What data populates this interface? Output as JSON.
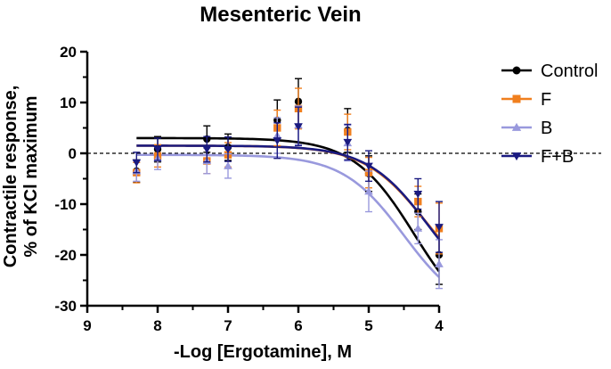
{
  "chart_data": {
    "type": "scatter",
    "title": "Mesenteric Vein",
    "xlabel": "-Log [Ergotamine], M",
    "ylabel_line1": "Contractile response,",
    "ylabel_line2": "% of KCl maximum",
    "xlim": [
      9,
      4
    ],
    "ylim": [
      -30,
      20
    ],
    "xticks": [
      9,
      8,
      7,
      6,
      5,
      4
    ],
    "yticks": [
      -30,
      -20,
      -10,
      0,
      10,
      20
    ],
    "zero_line": "dashed",
    "legend_position": "right",
    "series": [
      {
        "name": "Control",
        "color": "#000000",
        "marker": "circle",
        "x": [
          8.3,
          8,
          7.3,
          7,
          6.3,
          6,
          5.3,
          5,
          4.3,
          4
        ],
        "y": [
          -3.5,
          0.8,
          2.8,
          1.2,
          6.5,
          10.2,
          4.5,
          -4,
          -11.5,
          -20
        ],
        "err": [
          2.2,
          2.5,
          2.6,
          2.6,
          4,
          4.5,
          4.3,
          3.5,
          3.5,
          5.8
        ],
        "curve": {
          "top": 3.0,
          "bottom": -35,
          "logec50": 4.35,
          "hill": 1.0
        }
      },
      {
        "name": "F",
        "color": "#f07f1e",
        "marker": "square",
        "x": [
          8.3,
          8,
          7.3,
          7,
          6.3,
          6,
          5.3,
          5,
          4.3,
          4
        ],
        "y": [
          -3.8,
          -0.5,
          -1.5,
          -0.3,
          5,
          8.8,
          4.2,
          -3.8,
          -9.5,
          -14.8
        ],
        "err": [
          2,
          2.2,
          2.5,
          2.4,
          3.5,
          4,
          3.5,
          3,
          3,
          5
        ],
        "curve": {
          "top": 1.5,
          "bottom": -28,
          "logec50": 4.2,
          "hill": 1.0
        }
      },
      {
        "name": "B",
        "color": "#9999dd",
        "marker": "triangle-up",
        "x": [
          8.3,
          8,
          7.3,
          7,
          6.3,
          6,
          5.3,
          5,
          4.3,
          4
        ],
        "y": [
          -3.5,
          -1,
          -1.5,
          -2.5,
          3.5,
          5.5,
          2,
          -7.5,
          -14.8,
          -21.8
        ],
        "err": [
          2,
          2.2,
          2.5,
          2.4,
          3.5,
          3.8,
          3.5,
          4,
          3,
          4.8
        ],
        "curve": {
          "top": -0.3,
          "bottom": -32,
          "logec50": 4.5,
          "hill": 1.0
        }
      },
      {
        "name": "F+B",
        "color": "#1a1a80",
        "marker": "triangle-down",
        "x": [
          8.3,
          8,
          7.3,
          7,
          6.3,
          6,
          5.3,
          5,
          4.3,
          4
        ],
        "y": [
          -1.8,
          0.8,
          0.8,
          0.8,
          2.5,
          5.3,
          2.2,
          -2.5,
          -8,
          -14.5
        ],
        "err": [
          2,
          2.2,
          2.5,
          2.4,
          3.5,
          3.8,
          3.5,
          3,
          3,
          5
        ],
        "curve": {
          "top": 1.5,
          "bottom": -30,
          "logec50": 4.15,
          "hill": 1.0
        }
      }
    ]
  }
}
